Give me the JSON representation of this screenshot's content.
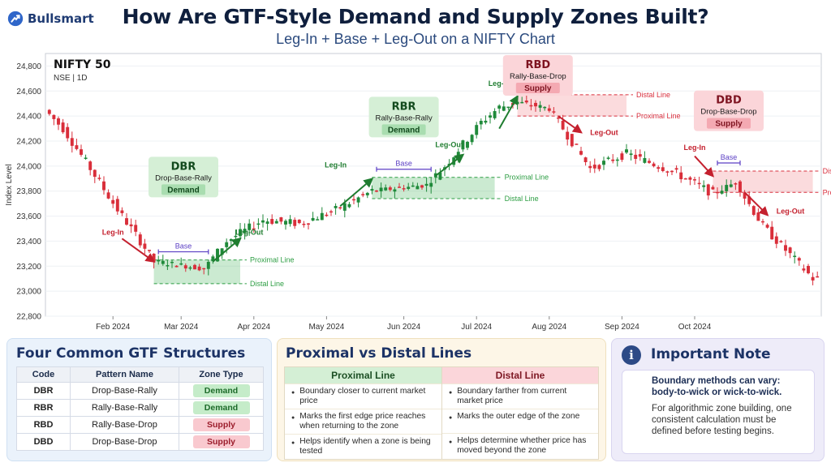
{
  "brand": {
    "name": "Bullsmart"
  },
  "header": {
    "title": "How Are GTF-Style Demand and Supply Zones Built?",
    "subtitle": "Leg-In + Base + Leg-Out on a NIFTY Chart"
  },
  "chart_data": {
    "type": "candlestick",
    "instrument": "NIFTY 50",
    "exchange_timeframe": "NSE  |  1D",
    "ylabel": "Index Level",
    "ylim": [
      22800,
      24900
    ],
    "yticks": [
      22800,
      23000,
      23200,
      23400,
      23600,
      23800,
      24000,
      24200,
      24400,
      24600,
      24800
    ],
    "ytick_labels": [
      "22,800",
      "23,000",
      "23,200",
      "23,400",
      "23,600",
      "23,800",
      "24,000",
      "24,200",
      "24,400",
      "24,600",
      "24,800"
    ],
    "xtick_labels": [
      "Feb 2024",
      "Mar 2024",
      "Apr 2024",
      "May 2024",
      "Jun 2024",
      "Jul 2024",
      "Aug 2024",
      "Sep 2024",
      "Oct 2024"
    ],
    "grid": true,
    "colors": {
      "up": "#1f8a3a",
      "down": "#d92e3a",
      "demand": "#2e9e44",
      "supply": "#d9303e"
    },
    "price_path": [
      {
        "t": 0,
        "p": 24450
      },
      {
        "t": 4,
        "p": 24300
      },
      {
        "t": 10,
        "p": 23980
      },
      {
        "t": 16,
        "p": 23650
      },
      {
        "t": 21,
        "p": 23400
      },
      {
        "t": 24,
        "p": 23240
      },
      {
        "t": 35,
        "p": 23180
      },
      {
        "t": 40,
        "p": 23400
      },
      {
        "t": 48,
        "p": 23570
      },
      {
        "t": 56,
        "p": 23540
      },
      {
        "t": 64,
        "p": 23650
      },
      {
        "t": 72,
        "p": 23800
      },
      {
        "t": 84,
        "p": 23850
      },
      {
        "t": 88,
        "p": 24000
      },
      {
        "t": 96,
        "p": 24350
      },
      {
        "t": 100,
        "p": 24470
      },
      {
        "t": 104,
        "p": 24510
      },
      {
        "t": 111,
        "p": 24460
      },
      {
        "t": 120,
        "p": 23980
      },
      {
        "t": 128,
        "p": 24100
      },
      {
        "t": 138,
        "p": 23960
      },
      {
        "t": 147,
        "p": 23780
      },
      {
        "t": 152,
        "p": 23870
      },
      {
        "t": 158,
        "p": 23520
      },
      {
        "t": 169,
        "p": 23100
      }
    ],
    "zones": [
      {
        "code": "DBR",
        "name": "Drop-Base-Rally",
        "type": "Demand",
        "base_range": [
          24,
          35
        ],
        "proximal": 23250,
        "distal": 23060,
        "proximal_label": "Proximal Line",
        "distal_label": "Distal Line",
        "leg_in_label": "Leg-In",
        "base_label": "Base",
        "leg_out_label": "Leg-Out"
      },
      {
        "code": "RBR",
        "name": "Rally-Base-Rally",
        "type": "Demand",
        "base_range": [
          72,
          84
        ],
        "proximal": 23910,
        "distal": 23740,
        "proximal_label": "Proximal Line",
        "distal_label": "Distal Line",
        "leg_in_label": "Leg-In",
        "base_label": "Base",
        "leg_out_label": "Leg-Out"
      },
      {
        "code": "RBD",
        "name": "Rally-Base-Drop",
        "type": "Supply",
        "base_range": [
          104,
          111
        ],
        "proximal": 24400,
        "distal": 24570,
        "proximal_label": "Proximal Line",
        "distal_label": "Distal Line",
        "leg_in_label": "Leg-In",
        "base_label": "Base",
        "leg_out_label": "Leg-Out"
      },
      {
        "code": "DBD",
        "name": "Drop-Base-Drop",
        "type": "Supply",
        "base_range": [
          147,
          152
        ],
        "proximal": 23790,
        "distal": 23960,
        "proximal_label": "Proximal Line",
        "distal_label": "Distal Line",
        "leg_in_label": "Leg-In",
        "base_label": "Base",
        "leg_out_label": "Leg-Out"
      }
    ]
  },
  "structures": {
    "title": "Four Common GTF Structures",
    "headers": [
      "Code",
      "Pattern Name",
      "Zone Type"
    ],
    "rows": [
      {
        "code": "DBR",
        "name": "Drop-Base-Rally",
        "zone": "Demand"
      },
      {
        "code": "RBR",
        "name": "Rally-Base-Rally",
        "zone": "Demand"
      },
      {
        "code": "RBD",
        "name": "Rally-Base-Drop",
        "zone": "Supply"
      },
      {
        "code": "DBD",
        "name": "Drop-Base-Drop",
        "zone": "Supply"
      }
    ]
  },
  "lines": {
    "title": "Proximal vs Distal Lines",
    "proximal_header": "Proximal Line",
    "distal_header": "Distal Line",
    "proximal_items": [
      "Boundary closer to current market price",
      "Marks the first edge price reaches when returning to the zone",
      "Helps identify when a zone is being tested"
    ],
    "distal_items": [
      "Boundary farther from current market price",
      "Marks the outer edge of the zone",
      "Helps determine whether price has moved beyond the zone"
    ]
  },
  "note": {
    "title": "Important Note",
    "strong": "Boundary methods can vary: body-to-wick or wick-to-wick.",
    "body": "For algorithmic zone building, one consistent calculation must be defined before testing begins."
  }
}
